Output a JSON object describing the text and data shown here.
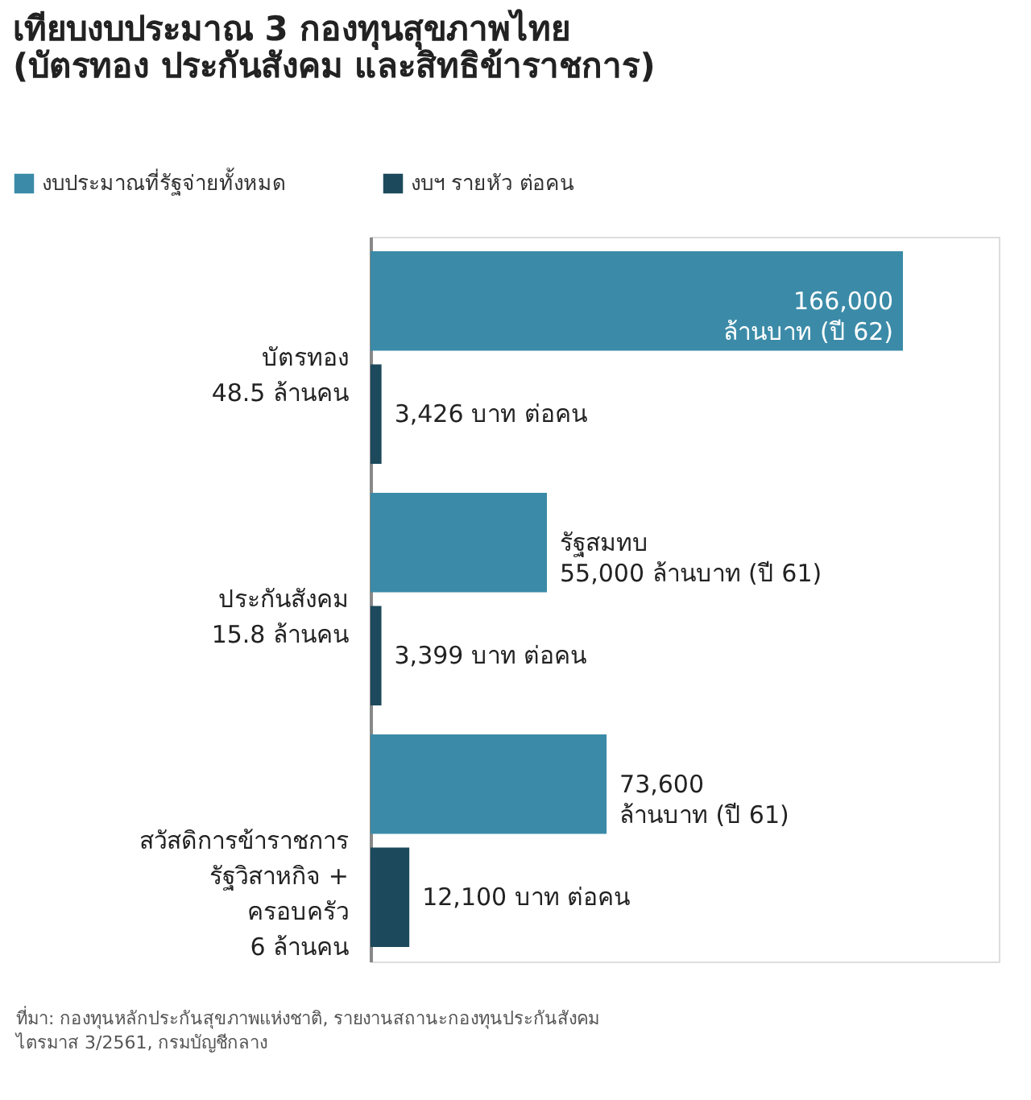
{
  "chart_data": {
    "type": "bar",
    "orientation": "horizontal",
    "title": "เทียบงบประมาณ 3 กองทุนสุขภาพไทย\n(บัตรทอง ประกันสังคม และสิทธิข้าราชการ)",
    "categories": [
      "บัตรทอง\n48.5 ล้านคน",
      "ประกันสังคม\n15.8 ล้านคน",
      "สวัสดิการข้าราชการ\nรัฐวิสาหกิจ +\nครอบครัว\n6 ล้านคน"
    ],
    "series": [
      {
        "name": "งบประมาณที่รัฐจ่ายทั้งหมด",
        "color": "#3b8ba8",
        "values": [
          166000,
          55000,
          73600
        ],
        "value_labels": [
          "166,000\nล้านบาท (ปี 62)",
          "รัฐสมทบ\n55,000 ล้านบาท (ปี 61)",
          "73,600\nล้านบาท (ปี 61)"
        ]
      },
      {
        "name": "งบฯ รายหัว ต่อคน",
        "color": "#1c4a5c",
        "values": [
          3426,
          3399,
          12100
        ],
        "value_labels": [
          "3,426 บาท ต่อคน",
          "3,399 บาท ต่อคน",
          "12,100 บาท ต่อคน"
        ]
      }
    ],
    "legend": "top left",
    "annotations": [
      "ที่มา: กองทุนหลักประกันสุขภาพแห่งชาติ, รายงานสถานะกองทุนประกันสังคม\nไตรมาส 3/2561, กรมบัญชีกลาง"
    ]
  }
}
